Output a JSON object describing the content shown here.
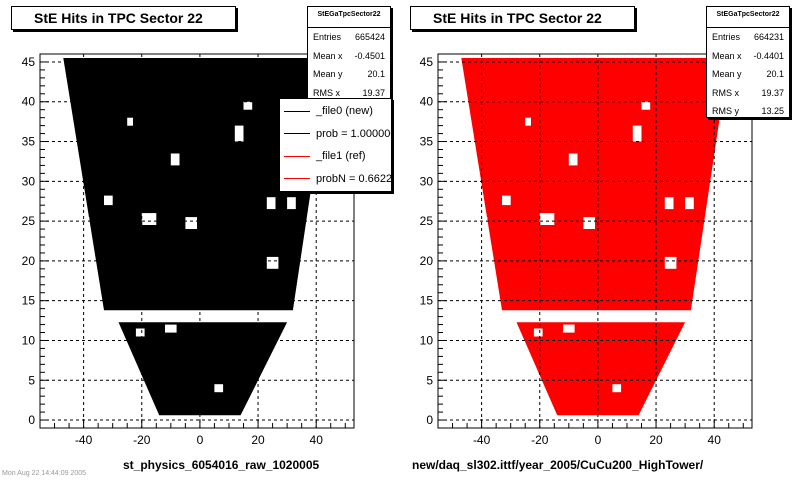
{
  "chart_data": [
    {
      "type": "heatmap",
      "title": "StE Hits in TPC Sector 22",
      "xlabel": "",
      "ylabel": "",
      "xlim": [
        -55,
        53
      ],
      "ylim": [
        -1,
        46
      ],
      "xticks": [
        -40,
        -20,
        0,
        20,
        40
      ],
      "yticks": [
        0,
        5,
        10,
        15,
        20,
        25,
        30,
        35,
        40,
        45
      ],
      "grid": true,
      "fill_color": "#000000",
      "stats": {
        "name": "StEGaTpcSector22",
        "rows": [
          {
            "label": "Entries",
            "value": "665424"
          },
          {
            "label": "Mean x",
            "value": "-0.4501"
          },
          {
            "label": "Mean y",
            "value": "20.1"
          },
          {
            "label": "RMS x",
            "value": "19.37"
          }
        ]
      },
      "legend": {
        "placement": "top-right",
        "entries": [
          {
            "label": "_file0 (new)",
            "color": "#000000"
          },
          {
            "label": "prob = 1.000000",
            "color": "#000000"
          },
          {
            "label": "_file1 (ref)",
            "color": "#ff0000"
          },
          {
            "label": "probN = 0.662227",
            "color": "#ff0000"
          }
        ]
      },
      "footer": "st_physics_6054016_raw_1020005"
    },
    {
      "type": "heatmap",
      "title": "StE Hits in TPC Sector 22",
      "xlabel": "",
      "ylabel": "",
      "xlim": [
        -55,
        53
      ],
      "ylim": [
        -1,
        46
      ],
      "xticks": [
        -40,
        -20,
        0,
        20,
        40
      ],
      "yticks": [
        0,
        5,
        10,
        15,
        20,
        25,
        30,
        35,
        40,
        45
      ],
      "grid": true,
      "fill_color": "#ff0000",
      "stats": {
        "name": "StEGaTpcSector22",
        "rows": [
          {
            "label": "Entries",
            "value": "664231"
          },
          {
            "label": "Mean x",
            "value": "-0.4401"
          },
          {
            "label": "Mean y",
            "value": "20.1"
          },
          {
            "label": "RMS x",
            "value": "19.37"
          },
          {
            "label": "RMS y",
            "value": "13.25"
          }
        ]
      },
      "footer": "new/daq_sl302.ittf/year_2005/CuCu200_HighTower/"
    }
  ],
  "corner_note": "Mon Aug 22 14:44:09 2005"
}
